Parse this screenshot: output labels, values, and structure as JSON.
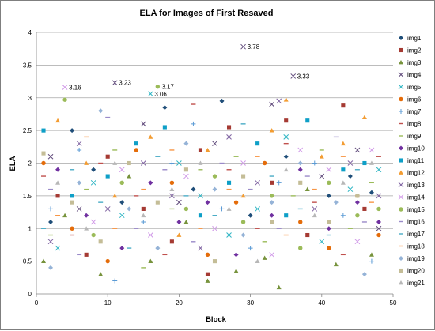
{
  "chart_data": {
    "type": "scatter",
    "title": "ELA for Images of First Resaved",
    "xlabel": "Block",
    "ylabel": "ELA",
    "xlim": [
      0,
      50
    ],
    "ylim": [
      0,
      4
    ],
    "xticks": [
      "0",
      "10",
      "20",
      "30",
      "40",
      "50"
    ],
    "yticks": [
      "0",
      "0.5",
      "1",
      "1.5",
      "2",
      "2.5",
      "3",
      "3.5",
      "4"
    ],
    "grid": "horizontal",
    "legend_position": "right",
    "series": [
      {
        "name": "img1",
        "color": "#1f4e79",
        "marker": "diamond",
        "values": [
          [
            2,
            1.1
          ],
          [
            5,
            2.5
          ],
          [
            8,
            1.9
          ],
          [
            12,
            1.4
          ],
          [
            18,
            2.85
          ],
          [
            22,
            1.6
          ],
          [
            26,
            2.95
          ],
          [
            30,
            1.2
          ],
          [
            35,
            2.1
          ],
          [
            41,
            1.5
          ],
          [
            44,
            1.8
          ],
          [
            47,
            1.55
          ]
        ]
      },
      {
        "name": "img2",
        "color": "#a53a33",
        "marker": "square",
        "values": [
          [
            3,
            1.5
          ],
          [
            7,
            0.6
          ],
          [
            10,
            2.1
          ],
          [
            15,
            1.3
          ],
          [
            19,
            0.8
          ],
          [
            23,
            2.2
          ],
          [
            24,
            0.3
          ],
          [
            27,
            2.55
          ],
          [
            33,
            1.7
          ],
          [
            35,
            2.65
          ],
          [
            38,
            0.9
          ],
          [
            43,
            2.88
          ],
          [
            46,
            1.3
          ]
        ]
      },
      {
        "name": "img3",
        "color": "#77933c",
        "marker": "triangle",
        "values": [
          [
            1,
            0.5
          ],
          [
            4,
            1.2
          ],
          [
            9,
            0.3
          ],
          [
            13,
            1.8
          ],
          [
            16,
            0.5
          ],
          [
            21,
            1.1
          ],
          [
            24,
            0.2
          ],
          [
            28,
            0.35
          ],
          [
            32,
            0.55
          ],
          [
            34,
            0.1
          ],
          [
            38,
            1.6
          ],
          [
            42,
            0.45
          ],
          [
            47,
            0.6
          ]
        ]
      },
      {
        "name": "img4",
        "color": "#604a7b",
        "marker": "x",
        "values": [
          [
            2,
            2.1
          ],
          [
            6,
            1.3
          ],
          [
            11,
            3.23
          ],
          [
            15,
            2.6
          ],
          [
            20,
            1.4
          ],
          [
            25,
            2.3
          ],
          [
            29,
            3.78
          ],
          [
            33,
            2.9
          ],
          [
            36,
            3.33
          ],
          [
            40,
            1.8
          ],
          [
            45,
            2.2
          ],
          [
            48,
            1.0
          ]
        ]
      },
      {
        "name": "img5",
        "color": "#31b6c4",
        "marker": "x",
        "values": [
          [
            3,
            0.7
          ],
          [
            8,
            1.7
          ],
          [
            12,
            1.2
          ],
          [
            16,
            3.06
          ],
          [
            20,
            2.0
          ],
          [
            23,
            1.5
          ],
          [
            27,
            0.9
          ],
          [
            31,
            1.3
          ],
          [
            35,
            2.4
          ],
          [
            40,
            0.8
          ],
          [
            44,
            1.6
          ],
          [
            48,
            1.9
          ]
        ]
      },
      {
        "name": "img6",
        "color": "#e46c0a",
        "marker": "circle",
        "values": [
          [
            1,
            2.0
          ],
          [
            5,
            1.0
          ],
          [
            10,
            0.5
          ],
          [
            14,
            2.2
          ],
          [
            19,
            1.7
          ],
          [
            24,
            0.6
          ],
          [
            28,
            1.4
          ],
          [
            32,
            2.0
          ],
          [
            37,
            1.1
          ],
          [
            41,
            0.7
          ],
          [
            45,
            1.5
          ],
          [
            48,
            0.9
          ]
        ]
      },
      {
        "name": "img7",
        "color": "#5b9bd5",
        "marker": "plus",
        "values": [
          [
            2,
            1.3
          ],
          [
            6,
            2.2
          ],
          [
            11,
            0.2
          ],
          [
            15,
            1.1
          ],
          [
            19,
            2.0
          ],
          [
            22,
            2.6
          ],
          [
            26,
            1.3
          ],
          [
            30,
            0.7
          ],
          [
            34,
            1.7
          ],
          [
            39,
            2.0
          ],
          [
            43,
            1.2
          ],
          [
            47,
            0.5
          ]
        ]
      },
      {
        "name": "img8",
        "color": "#c0504d",
        "marker": "dash",
        "values": [
          [
            1,
            1.8
          ],
          [
            5,
            0.9
          ],
          [
            9,
            2.0
          ],
          [
            14,
            1.5
          ],
          [
            18,
            0.6
          ],
          [
            22,
            2.9
          ],
          [
            27,
            1.9
          ],
          [
            31,
            1.0
          ],
          [
            35,
            2.3
          ],
          [
            39,
            1.4
          ],
          [
            43,
            0.6
          ],
          [
            48,
            2.1
          ]
        ]
      },
      {
        "name": "img9",
        "color": "#9bbb59",
        "marker": "dash",
        "values": [
          [
            2,
            0.9
          ],
          [
            7,
            1.6
          ],
          [
            11,
            2.2
          ],
          [
            15,
            0.4
          ],
          [
            19,
            1.3
          ],
          [
            23,
            1.9
          ],
          [
            28,
            2.1
          ],
          [
            32,
            0.8
          ],
          [
            36,
            1.5
          ],
          [
            40,
            2.2
          ],
          [
            44,
            1.0
          ],
          [
            47,
            1.7
          ]
        ]
      },
      {
        "name": "img10",
        "color": "#7030a0",
        "marker": "diamond",
        "values": [
          [
            3,
            1.9
          ],
          [
            7,
            1.2
          ],
          [
            12,
            0.7
          ],
          [
            16,
            1.7
          ],
          [
            20,
            1.1
          ],
          [
            24,
            1.4
          ],
          [
            28,
            0.6
          ],
          [
            33,
            1.2
          ],
          [
            37,
            1.9
          ],
          [
            41,
            1.0
          ],
          [
            45,
            1.4
          ],
          [
            48,
            1.1
          ]
        ]
      },
      {
        "name": "img11",
        "color": "#0e9fc7",
        "marker": "square",
        "values": [
          [
            1,
            2.5
          ],
          [
            5,
            1.5
          ],
          [
            10,
            1.8
          ],
          [
            14,
            2.3
          ],
          [
            18,
            2.55
          ],
          [
            23,
            1.2
          ],
          [
            27,
            1.7
          ],
          [
            31,
            2.3
          ],
          [
            35,
            1.2
          ],
          [
            38,
            2.65
          ],
          [
            43,
            1.9
          ],
          [
            46,
            2.0
          ]
        ]
      },
      {
        "name": "img12",
        "color": "#f39c31",
        "marker": "triangle",
        "values": [
          [
            3,
            2.65
          ],
          [
            7,
            2.0
          ],
          [
            11,
            1.5
          ],
          [
            16,
            2.4
          ],
          [
            20,
            0.9
          ],
          [
            24,
            2.2
          ],
          [
            29,
            1.5
          ],
          [
            33,
            2.5
          ],
          [
            35,
            2.97
          ],
          [
            40,
            2.1
          ],
          [
            43,
            2.3
          ],
          [
            46,
            2.7
          ]
        ]
      },
      {
        "name": "img13",
        "color": "#8064a2",
        "marker": "x",
        "values": [
          [
            2,
            0.8
          ],
          [
            6,
            2.3
          ],
          [
            10,
            1.3
          ],
          [
            15,
            2.0
          ],
          [
            19,
            1.5
          ],
          [
            23,
            0.7
          ],
          [
            27,
            2.4
          ],
          [
            31,
            1.7
          ],
          [
            34,
            2.95
          ],
          [
            39,
            1.3
          ],
          [
            44,
            2.0
          ],
          [
            48,
            1.5
          ]
        ]
      },
      {
        "name": "img14",
        "color": "#d19ae8",
        "marker": "x",
        "values": [
          [
            4,
            3.16
          ],
          [
            8,
            1.1
          ],
          [
            12,
            1.9
          ],
          [
            16,
            0.9
          ],
          [
            21,
            1.8
          ],
          [
            25,
            1.0
          ],
          [
            29,
            2.0
          ],
          [
            33,
            0.6
          ],
          [
            37,
            2.2
          ],
          [
            41,
            1.9
          ],
          [
            45,
            0.8
          ],
          [
            47,
            2.2
          ]
        ]
      },
      {
        "name": "img15",
        "color": "#9bbb59",
        "marker": "circle",
        "values": [
          [
            4,
            2.97
          ],
          [
            8,
            0.9
          ],
          [
            12,
            1.7
          ],
          [
            17,
            3.17
          ],
          [
            21,
            1.3
          ],
          [
            25,
            1.8
          ],
          [
            29,
            1.1
          ],
          [
            33,
            1.5
          ],
          [
            37,
            0.7
          ],
          [
            41,
            1.7
          ],
          [
            45,
            1.2
          ],
          [
            48,
            1.3
          ]
        ]
      },
      {
        "name": "img16",
        "color": "#9a8ac9",
        "marker": "dash",
        "values": [
          [
            2,
            1.6
          ],
          [
            6,
            0.6
          ],
          [
            10,
            2.7
          ],
          [
            14,
            1.0
          ],
          [
            18,
            1.9
          ],
          [
            22,
            0.8
          ],
          [
            26,
            2.0
          ],
          [
            30,
            1.6
          ],
          [
            34,
            1.0
          ],
          [
            38,
            1.8
          ],
          [
            42,
            2.4
          ],
          [
            46,
            1.1
          ]
        ]
      },
      {
        "name": "img17",
        "color": "#4aacc6",
        "marker": "dash",
        "values": [
          [
            1,
            1.0
          ],
          [
            5,
            1.9
          ],
          [
            9,
            1.4
          ],
          [
            13,
            0.7
          ],
          [
            17,
            2.1
          ],
          [
            21,
            1.5
          ],
          [
            25,
            1.2
          ],
          [
            29,
            2.6
          ],
          [
            33,
            1.8
          ],
          [
            37,
            1.3
          ],
          [
            41,
            0.9
          ],
          [
            45,
            1.9
          ]
        ]
      },
      {
        "name": "img18",
        "color": "#f79646",
        "marker": "dash",
        "values": [
          [
            3,
            1.2
          ],
          [
            7,
            2.4
          ],
          [
            11,
            1.0
          ],
          [
            15,
            1.6
          ],
          [
            19,
            2.2
          ],
          [
            23,
            1.0
          ],
          [
            27,
            1.6
          ],
          [
            31,
            2.1
          ],
          [
            35,
            0.9
          ],
          [
            39,
            1.6
          ],
          [
            43,
            2.1
          ],
          [
            47,
            1.4
          ]
        ]
      },
      {
        "name": "img19",
        "color": "#95b3d7",
        "marker": "diamond",
        "values": [
          [
            2,
            0.4
          ],
          [
            6,
            1.7
          ],
          [
            9,
            2.8
          ],
          [
            13,
            1.3
          ],
          [
            17,
            0.7
          ],
          [
            21,
            2.3
          ],
          [
            25,
            1.6
          ],
          [
            29,
            0.9
          ],
          [
            33,
            1.4
          ],
          [
            37,
            2.0
          ],
          [
            42,
            1.4
          ],
          [
            46,
            0.3
          ]
        ]
      },
      {
        "name": "img20",
        "color": "#c4bd97",
        "marker": "square",
        "values": [
          [
            1,
            2.15
          ],
          [
            5,
            1.4
          ],
          [
            9,
            0.8
          ],
          [
            13,
            2.0
          ],
          [
            17,
            1.4
          ],
          [
            21,
            1.9
          ],
          [
            25,
            0.5
          ],
          [
            29,
            1.8
          ],
          [
            33,
            1.1
          ],
          [
            37,
            1.7
          ],
          [
            41,
            1.1
          ],
          [
            45,
            1.5
          ]
        ]
      },
      {
        "name": "img21",
        "color": "#b7b7b7",
        "marker": "triangle",
        "values": [
          [
            3,
            1.7
          ],
          [
            7,
            1.0
          ],
          [
            11,
            2.0
          ],
          [
            15,
            1.2
          ],
          [
            19,
            1.6
          ],
          [
            23,
            2.0
          ],
          [
            27,
            1.3
          ],
          [
            31,
            0.5
          ],
          [
            35,
            1.9
          ],
          [
            39,
            1.2
          ],
          [
            43,
            1.7
          ],
          [
            47,
            2.0
          ]
        ]
      }
    ],
    "annotations": [
      {
        "text": "3.16",
        "x": 4,
        "y": 3.16
      },
      {
        "text": "3.23",
        "x": 11,
        "y": 3.23
      },
      {
        "text": "3.06",
        "x": 16,
        "y": 3.06
      },
      {
        "text": "3.17",
        "x": 17,
        "y": 3.17
      },
      {
        "text": "3.78",
        "x": 29,
        "y": 3.78
      },
      {
        "text": "3.33",
        "x": 36,
        "y": 3.33
      }
    ]
  }
}
